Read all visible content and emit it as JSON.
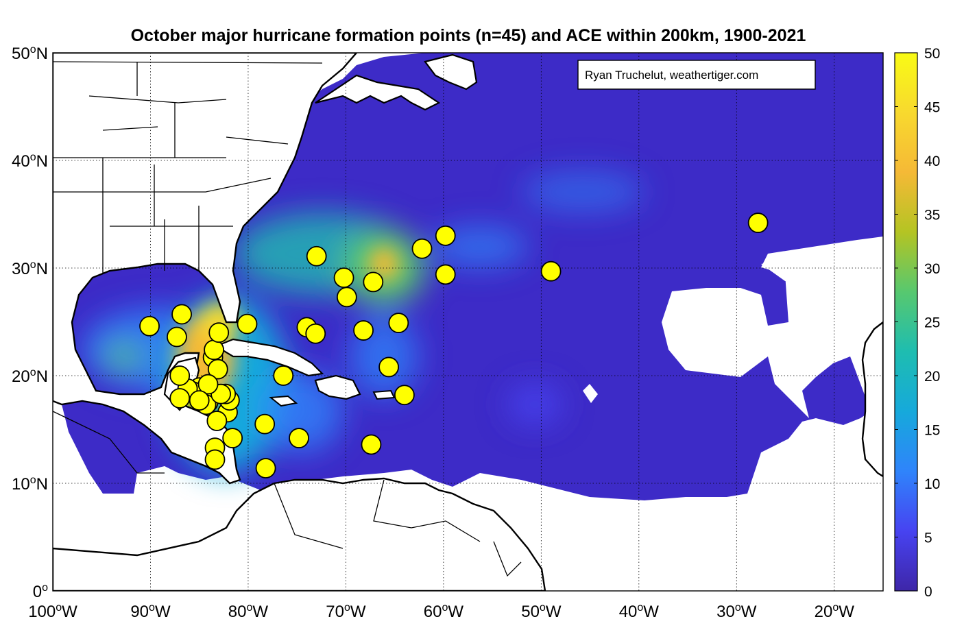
{
  "title": "October major hurricane formation points (n=45) and ACE within 200km, 1900-2021",
  "credit": "Ryan Truchelut, weathertiger.com",
  "map": {
    "lon_range": [
      -100,
      -15
    ],
    "lat_range": [
      0,
      50
    ],
    "x_ticks": [
      {
        "lon": -100,
        "num": "100",
        "hemi": "W"
      },
      {
        "lon": -90,
        "num": "90",
        "hemi": "W"
      },
      {
        "lon": -80,
        "num": "80",
        "hemi": "W"
      },
      {
        "lon": -70,
        "num": "70",
        "hemi": "W"
      },
      {
        "lon": -60,
        "num": "60",
        "hemi": "W"
      },
      {
        "lon": -50,
        "num": "50",
        "hemi": "W"
      },
      {
        "lon": -40,
        "num": "40",
        "hemi": "W"
      },
      {
        "lon": -30,
        "num": "30",
        "hemi": "W"
      },
      {
        "lon": -20,
        "num": "20",
        "hemi": "W"
      }
    ],
    "y_ticks": [
      {
        "lat": 0,
        "num": "0",
        "hemi": ""
      },
      {
        "lat": 10,
        "num": "10",
        "hemi": "N"
      },
      {
        "lat": 20,
        "num": "20",
        "hemi": "N"
      },
      {
        "lat": 30,
        "num": "30",
        "hemi": "N"
      },
      {
        "lat": 40,
        "num": "40",
        "hemi": "N"
      },
      {
        "lat": 50,
        "num": "50",
        "hemi": "N"
      }
    ],
    "degree_symbol": "o",
    "grid": true
  },
  "colorbar": {
    "min": 0,
    "max": 50,
    "ticks": [
      "0",
      "5",
      "10",
      "15",
      "20",
      "25",
      "30",
      "35",
      "40",
      "45",
      "50"
    ],
    "colors": [
      "#3e26a8",
      "#4743f1",
      "#2f84fb",
      "#16a9db",
      "#1ebdb0",
      "#57c86f",
      "#b4c423",
      "#f5b936",
      "#f8d92e",
      "#f9fb15"
    ]
  },
  "chart_data": {
    "type": "scatter",
    "title": "October major hurricane formation points (n=45) and ACE within 200km, 1900-2021",
    "x_unit": "longitude (deg W negative)",
    "y_unit": "latitude (deg N)",
    "points": [
      [
        -27.8,
        34.2
      ],
      [
        -49.0,
        29.7
      ],
      [
        -59.8,
        33.0
      ],
      [
        -59.8,
        29.4
      ],
      [
        -62.2,
        31.8
      ],
      [
        -67.2,
        28.7
      ],
      [
        -70.2,
        29.1
      ],
      [
        -69.9,
        27.3
      ],
      [
        -73.0,
        31.1
      ],
      [
        -64.6,
        24.9
      ],
      [
        -68.2,
        24.2
      ],
      [
        -74.0,
        24.5
      ],
      [
        -73.1,
        23.9
      ],
      [
        -80.1,
        24.8
      ],
      [
        -65.6,
        20.8
      ],
      [
        -64.0,
        18.2
      ],
      [
        -67.4,
        13.6
      ],
      [
        -74.8,
        14.2
      ],
      [
        -76.4,
        20.0
      ],
      [
        -78.3,
        15.5
      ],
      [
        -78.2,
        11.4
      ],
      [
        -81.6,
        14.2
      ],
      [
        -82.1,
        16.6
      ],
      [
        -81.9,
        17.7
      ],
      [
        -82.3,
        18.3
      ],
      [
        -83.2,
        15.8
      ],
      [
        -83.4,
        13.3
      ],
      [
        -83.4,
        12.2
      ],
      [
        -84.1,
        17.5
      ],
      [
        -84.3,
        17.3
      ],
      [
        -85.0,
        18.9
      ],
      [
        -85.6,
        18.5
      ],
      [
        -86.2,
        18.8
      ],
      [
        -87.0,
        17.9
      ],
      [
        -87.0,
        20.0
      ],
      [
        -87.3,
        23.6
      ],
      [
        -86.8,
        25.7
      ],
      [
        -83.6,
        21.7
      ],
      [
        -83.1,
        20.6
      ],
      [
        -83.5,
        22.4
      ],
      [
        -83.0,
        24.0
      ],
      [
        -90.1,
        24.6
      ],
      [
        -82.8,
        18.3
      ],
      [
        -84.1,
        19.2
      ],
      [
        -85.0,
        17.7
      ]
    ]
  }
}
